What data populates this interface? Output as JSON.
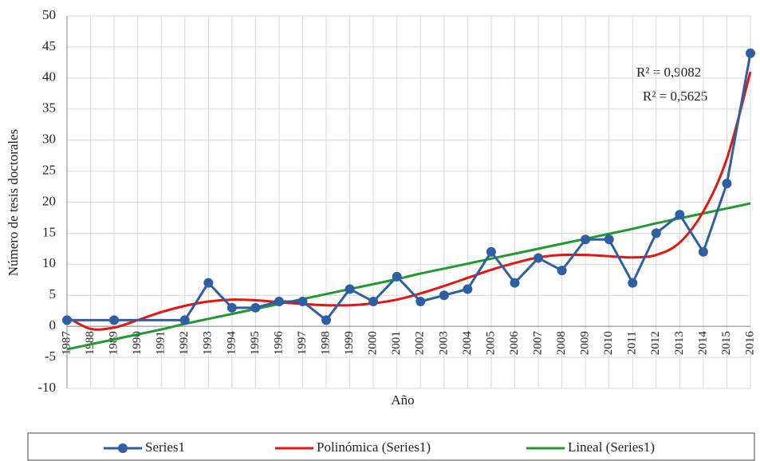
{
  "chart_data": {
    "type": "line",
    "x_label": "Año",
    "y_label": "Número de tesis doctorales",
    "xlim": [
      1987,
      2016
    ],
    "xticks": [
      1987,
      1988,
      1989,
      1990,
      1991,
      1992,
      1993,
      1994,
      1995,
      1996,
      1997,
      1998,
      1999,
      2000,
      2001,
      2002,
      2003,
      2004,
      2005,
      2006,
      2007,
      2008,
      2009,
      2010,
      2011,
      2012,
      2013,
      2014,
      2015,
      2016
    ],
    "ylim": [
      -10,
      50
    ],
    "yticks": [
      -10,
      -5,
      0,
      5,
      10,
      15,
      20,
      25,
      30,
      35,
      40,
      45,
      50
    ],
    "grid": true,
    "legend": "bottom",
    "annotations": [
      "R² = 0,9082",
      "R² = 0,5625"
    ],
    "series": [
      {
        "name": "Series1",
        "color": "#2e5fa3",
        "markers": true,
        "x": [
          1987,
          1989,
          1992,
          1993,
          1994,
          1995,
          1996,
          1997,
          1998,
          1999,
          2000,
          2001,
          2002,
          2003,
          2004,
          2005,
          2006,
          2007,
          2008,
          2009,
          2010,
          2011,
          2012,
          2013,
          2014,
          2015,
          2016
        ],
        "values": [
          1,
          1,
          1,
          7,
          3,
          3,
          4,
          4,
          1,
          6,
          4,
          8,
          4,
          5,
          6,
          12,
          7,
          11,
          9,
          14,
          14,
          7,
          15,
          18,
          12,
          23,
          44
        ]
      },
      {
        "name": "Polinómica (Series1)",
        "color": "#e8140f",
        "markers": false,
        "x": [
          1987,
          1988,
          1989,
          1990,
          1991,
          1992,
          1993,
          1994,
          1995,
          1996,
          1997,
          1998,
          1999,
          2000,
          2001,
          2002,
          2003,
          2004,
          2005,
          2006,
          2007,
          2008,
          2009,
          2010,
          2011,
          2012,
          2013,
          2014,
          2015,
          2016
        ],
        "values": [
          1.5,
          -0.4,
          -0.2,
          1,
          2.3,
          3.3,
          4,
          4.3,
          4.2,
          3.9,
          3.6,
          3.4,
          3.4,
          3.7,
          4.3,
          5.3,
          6.5,
          7.8,
          9.1,
          10.2,
          11.1,
          11.5,
          11.5,
          11.3,
          11.1,
          11.5,
          13.5,
          18.5,
          27,
          41
        ]
      },
      {
        "name": "Lineal (Series1)",
        "color": "#1f9a2e",
        "markers": false,
        "x": [
          1987,
          1988,
          1989,
          1990,
          1991,
          1992,
          1993,
          1994,
          1995,
          1996,
          1997,
          1998,
          1999,
          2000,
          2001,
          2002,
          2003,
          2004,
          2005,
          2006,
          2007,
          2008,
          2009,
          2010,
          2011,
          2012,
          2013,
          2014,
          2015,
          2016
        ],
        "values": [
          -3.7,
          -2.9,
          -2.1,
          -1.3,
          -0.5,
          0.4,
          1.2,
          2.0,
          2.8,
          3.6,
          4.4,
          5.2,
          6.0,
          6.8,
          7.6,
          8.5,
          9.3,
          10.1,
          10.9,
          11.7,
          12.5,
          13.3,
          14.1,
          14.9,
          15.7,
          16.6,
          17.4,
          18.2,
          19.0,
          19.8
        ]
      }
    ]
  }
}
